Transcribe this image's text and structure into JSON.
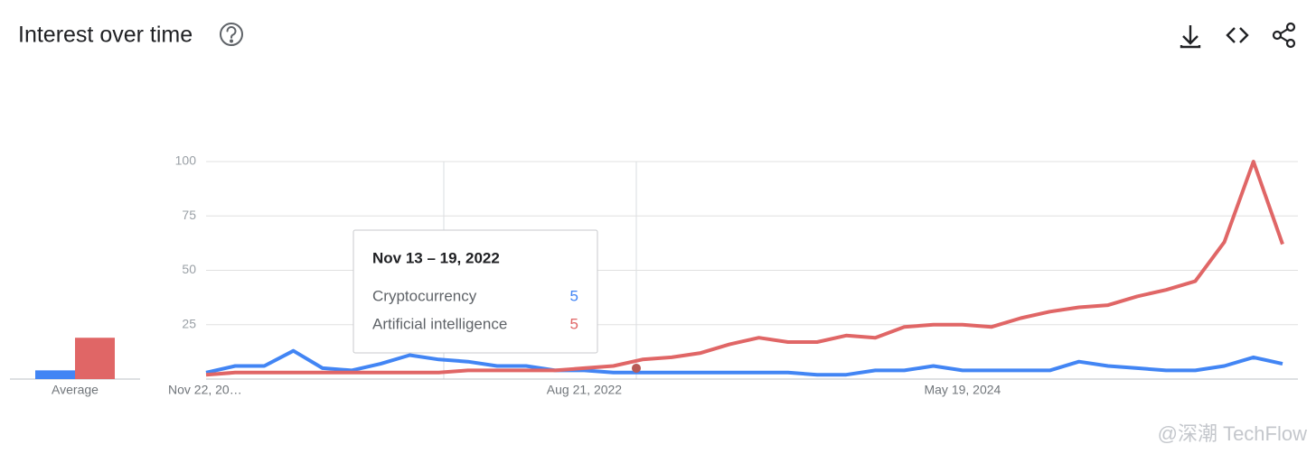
{
  "chart_data": {
    "type": "line",
    "title": "Interest over time",
    "categories": [
      "Nov 22, 20…",
      null,
      null,
      null,
      null,
      null,
      null,
      null,
      null,
      null,
      null,
      null,
      null,
      "Aug 21, 2022",
      null,
      null,
      null,
      null,
      null,
      null,
      null,
      null,
      null,
      null,
      null,
      null,
      "May 19, 2024",
      null,
      null,
      null,
      null,
      null,
      null,
      null,
      null,
      null,
      null,
      null
    ],
    "series": [
      {
        "name": "Cryptocurrency",
        "color": "#4285f4",
        "average": 4,
        "values": [
          3,
          6,
          6,
          13,
          5,
          4,
          7,
          11,
          9,
          8,
          6,
          6,
          4,
          4,
          3,
          3,
          3,
          3,
          3,
          3,
          3,
          2,
          2,
          4,
          4,
          6,
          4,
          4,
          4,
          4,
          8,
          6,
          5,
          4,
          4,
          6,
          10,
          7
        ]
      },
      {
        "name": "Artificial intelligence",
        "color": "#e06666",
        "average": 19,
        "values": [
          2,
          3,
          3,
          3,
          3,
          3,
          3,
          3,
          3,
          4,
          4,
          4,
          4,
          5,
          6,
          9,
          10,
          12,
          16,
          19,
          17,
          17,
          20,
          19,
          24,
          25,
          25,
          24,
          28,
          31,
          33,
          34,
          38,
          41,
          45,
          63,
          100,
          62
        ]
      }
    ],
    "ylim": [
      0,
      100
    ],
    "yticks": [
      25,
      50,
      75,
      100
    ],
    "grid": true,
    "average_label": "Average",
    "tooltip": {
      "title": "Nov 13 – 19, 2022",
      "values": [
        5,
        5
      ]
    }
  },
  "watermark": "@深潮 TechFlow"
}
